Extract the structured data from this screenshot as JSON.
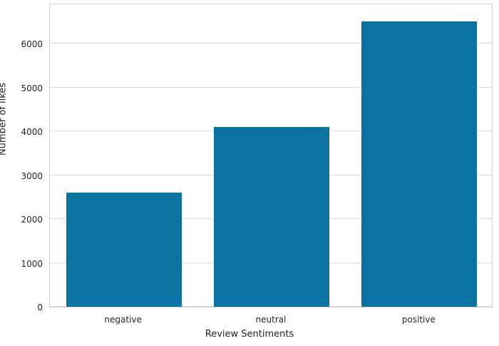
{
  "chart_data": {
    "type": "bar",
    "categories": [
      "negative",
      "neutral",
      "positive"
    ],
    "values": [
      2610,
      4100,
      6515
    ],
    "title": "",
    "xlabel": "Review Sentiments",
    "ylabel": "Number of likes",
    "yticks": [
      0,
      1000,
      2000,
      3000,
      4000,
      5000,
      6000
    ],
    "ylim": [
      0,
      6930
    ],
    "bar_color": "#0b73a3",
    "grid": true,
    "grid_color": "#dcdcdc",
    "spine_color": "#cfcfcf",
    "text_color": "#262626",
    "legend": "none",
    "bar_width_fraction": 0.78
  }
}
